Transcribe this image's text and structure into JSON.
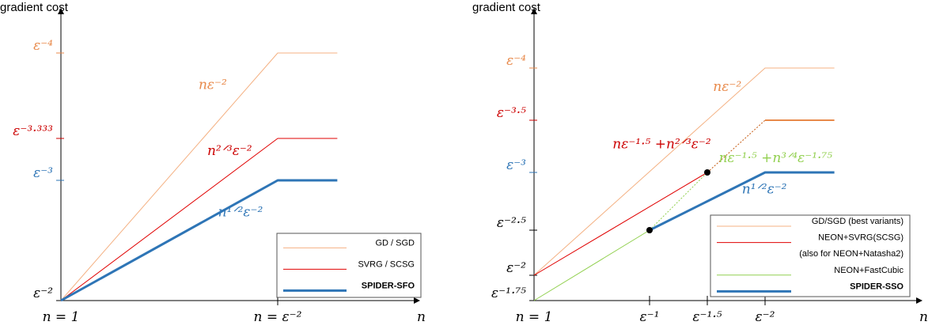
{
  "chart_data": [
    {
      "type": "line",
      "title": "",
      "ylabel": "gradient cost",
      "xlabel": "n",
      "x_ticks": [
        {
          "label": "n = 1",
          "x": 0
        },
        {
          "label": "n = ε⁻²",
          "x": 2
        }
      ],
      "y_ticks": [
        {
          "label": "ε⁻²",
          "y": 2,
          "color": "#000000"
        },
        {
          "label": "ε⁻³",
          "y": 3,
          "color": "#2e75b6"
        },
        {
          "label": "ε⁻³·³³³",
          "y": 3.333,
          "color": "#cc0000"
        },
        {
          "label": "ε⁻⁴",
          "y": 4,
          "color": "#e8894a"
        }
      ],
      "xlim": [
        0,
        2.55
      ],
      "ylim": [
        2,
        4.3
      ],
      "series": [
        {
          "name": "GD / SGD",
          "color": "#f4b183",
          "width": 1,
          "x": [
            0,
            2,
            2.55
          ],
          "y": [
            2,
            4,
            4
          ]
        },
        {
          "name": "SVRG / SCSG",
          "color": "#e00000",
          "width": 1,
          "x": [
            0,
            2,
            2.55
          ],
          "y": [
            2,
            3.333,
            3.333
          ]
        },
        {
          "name": "SPIDER-SFO",
          "color": "#2e75b6",
          "width": 3,
          "bold": true,
          "x": [
            0,
            2,
            2.55
          ],
          "y": [
            2,
            3,
            3
          ]
        }
      ],
      "annotations": [
        {
          "text": "nε⁻²",
          "color": "#e8894a",
          "x": 1.27,
          "y": 3.72
        },
        {
          "text": "n²ᐟ³ε⁻²",
          "color": "#cc0000",
          "x": 1.35,
          "y": 3.2
        },
        {
          "text": "n¹ᐟ²ε⁻²",
          "color": "#2e75b6",
          "x": 1.45,
          "y": 2.7
        }
      ],
      "legend": "bottom-right"
    },
    {
      "type": "line",
      "title": "",
      "ylabel": "gradient cost",
      "xlabel": "n",
      "x_ticks": [
        {
          "label": "n = 1",
          "x": 0
        },
        {
          "label": "ε⁻¹",
          "x": 1
        },
        {
          "label": "ε⁻¹·⁵",
          "x": 1.5
        },
        {
          "label": "ε⁻²",
          "x": 2
        }
      ],
      "y_ticks": [
        {
          "label": "ε⁻¹·⁷⁵",
          "y": 1.75,
          "color": "#000000"
        },
        {
          "label": "ε⁻²",
          "y": 2,
          "color": "#000000"
        },
        {
          "label": "ε⁻²·⁵",
          "y": 2.5,
          "color": "#000000"
        },
        {
          "label": "ε⁻³",
          "y": 3,
          "color": "#2e75b6"
        },
        {
          "label": "ε⁻³·⁵",
          "y": 3.5,
          "color": "#cc0000"
        },
        {
          "label": "ε⁻⁴",
          "y": 4,
          "color": "#e8894a"
        }
      ],
      "xlim": [
        0,
        2.6
      ],
      "ylim": [
        1.75,
        4.3
      ],
      "series": [
        {
          "name": "GD/SGD (best variants)",
          "color": "#f4b183",
          "width": 1,
          "x": [
            0,
            2,
            2.6
          ],
          "y": [
            2,
            4,
            4
          ]
        },
        {
          "name": "NEON+SVRG(SCSG)",
          "color": "#e00000",
          "width": 1,
          "x": [
            0,
            1.5
          ],
          "y": [
            2,
            3.0
          ]
        },
        {
          "name": "(also for NEON+Natasha2)",
          "color": "#ffffff",
          "width": 0,
          "x": [],
          "y": []
        },
        {
          "name": "NEON+FastCubic",
          "color": "#92d050",
          "width": 1,
          "x": [
            0,
            1
          ],
          "y": [
            1.75,
            2.5
          ]
        },
        {
          "name": "SPIDER-SSO",
          "color": "#2e75b6",
          "width": 3,
          "bold": true,
          "x": [
            1,
            2,
            2.6
          ],
          "y": [
            2.5,
            3,
            3
          ]
        }
      ],
      "extra_lines": [
        {
          "color": "#e8894a",
          "width": 2,
          "x": [
            2,
            2.6
          ],
          "y": [
            3.5,
            3.5
          ]
        },
        {
          "color": "#c55a11",
          "width": 1,
          "dashed": true,
          "x": [
            1.5,
            2
          ],
          "y": [
            3.0,
            3.5
          ]
        },
        {
          "color": "#92d050",
          "width": 1,
          "dashed": true,
          "x": [
            1,
            1.5
          ],
          "y": [
            2.5,
            3.0
          ]
        }
      ],
      "points": [
        {
          "x": 1,
          "y": 2.5
        },
        {
          "x": 1.5,
          "y": 3.0
        }
      ],
      "annotations": [
        {
          "text": "nε⁻²",
          "color": "#e8894a",
          "x": 1.55,
          "y": 3.78
        },
        {
          "text": "nε⁻¹·⁵ +n²ᐟ³ε⁻²",
          "color": "#cc0000",
          "x": 0.68,
          "y": 3.23
        },
        {
          "text": "nε⁻¹·⁵ +n³ᐟ⁴ε⁻¹·⁷⁵",
          "color": "#92d050",
          "x": 1.6,
          "y": 3.1
        },
        {
          "text": "n¹ᐟ²ε⁻²",
          "color": "#2e75b6",
          "x": 1.8,
          "y": 2.82
        }
      ],
      "legend": "bottom-right"
    }
  ]
}
